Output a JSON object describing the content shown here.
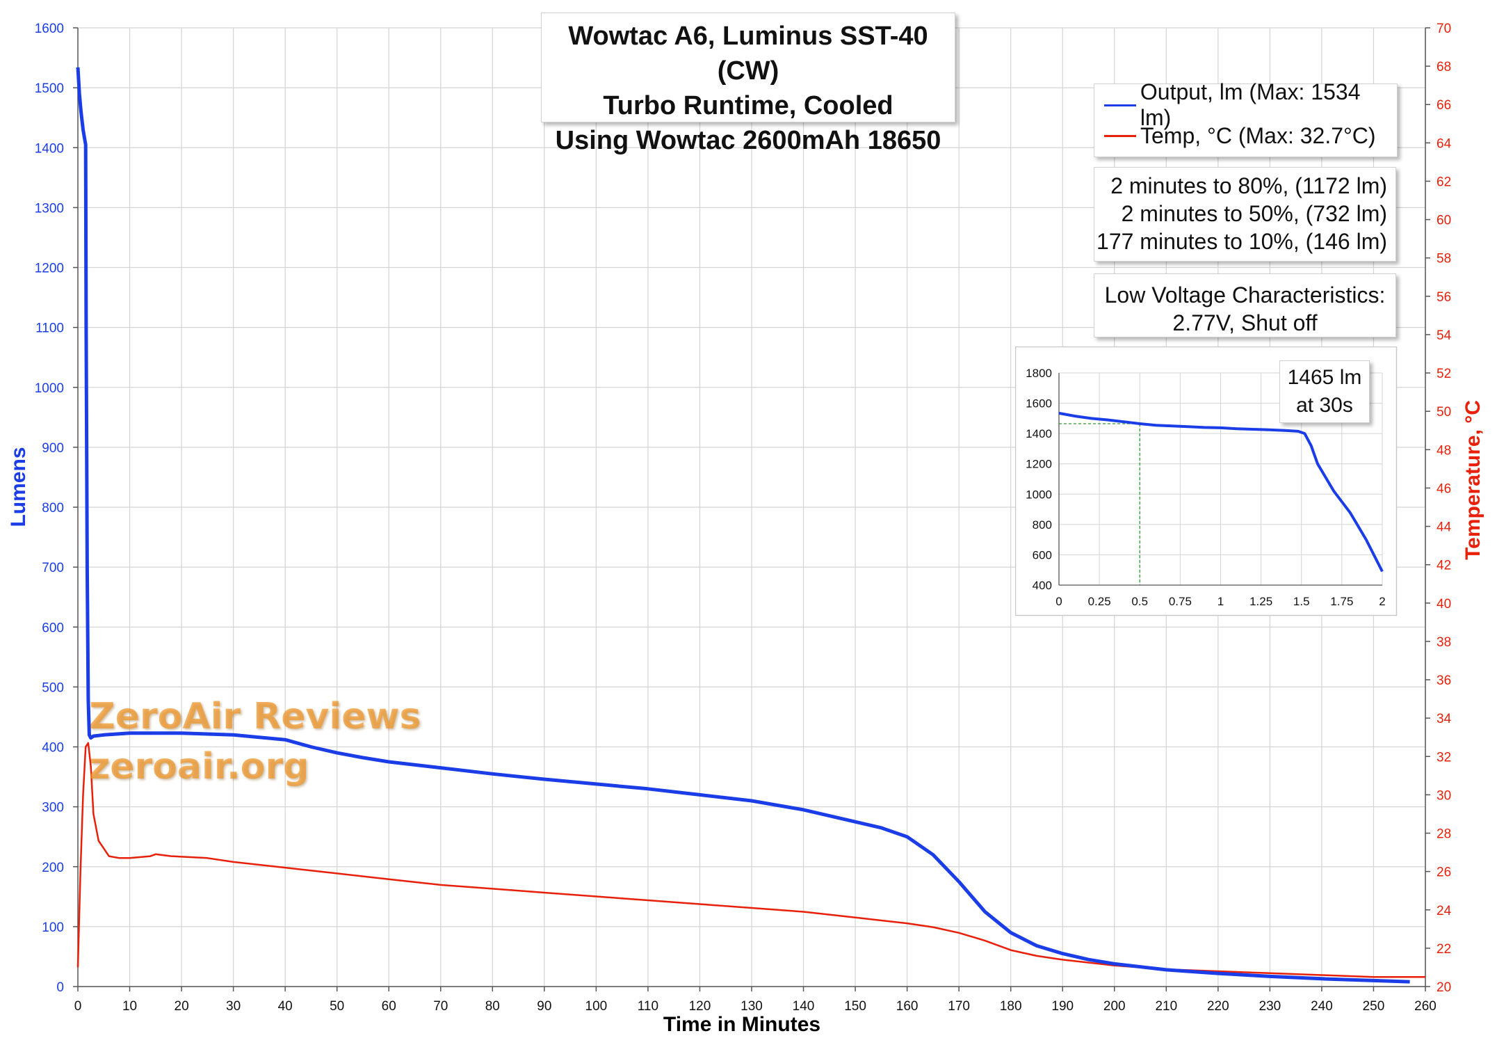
{
  "chart_data": [
    {
      "type": "line",
      "title": [
        "Wowtac A6, Luminus SST-40 (CW)",
        "Turbo Runtime, Cooled",
        "Using Wowtac 2600mAh 18650"
      ],
      "xlabel": "Time in Minutes",
      "ylabel": "Lumens",
      "y2label": "Temperature, °C",
      "xlim": [
        0,
        260
      ],
      "ylim": [
        0,
        1600
      ],
      "y2lim": [
        20,
        70
      ],
      "xticks": [
        0,
        10,
        20,
        30,
        40,
        50,
        60,
        70,
        80,
        90,
        100,
        110,
        120,
        130,
        140,
        150,
        160,
        170,
        180,
        190,
        200,
        210,
        220,
        230,
        240,
        250,
        260
      ],
      "yticks": [
        0,
        100,
        200,
        300,
        400,
        500,
        600,
        700,
        800,
        900,
        1000,
        1100,
        1200,
        1300,
        1400,
        1500,
        1600
      ],
      "y2ticks": [
        20,
        22,
        24,
        26,
        28,
        30,
        32,
        34,
        36,
        38,
        40,
        42,
        44,
        46,
        48,
        50,
        52,
        54,
        56,
        58,
        60,
        62,
        64,
        66,
        68,
        70
      ],
      "grid": true,
      "legend_position": "top-right",
      "series": [
        {
          "name": "Output, lm (Max: 1534 lm)",
          "color": "#1a3de8",
          "axis": "left",
          "x": [
            0,
            0.3,
            0.6,
            1,
            1.4,
            1.5,
            1.6,
            1.8,
            2,
            2.2,
            2.5,
            3,
            5,
            10,
            20,
            30,
            40,
            45,
            50,
            55,
            60,
            70,
            80,
            90,
            100,
            110,
            120,
            130,
            140,
            150,
            155,
            160,
            165,
            170,
            175,
            180,
            185,
            190,
            195,
            200,
            210,
            220,
            230,
            240,
            250,
            257
          ],
          "y": [
            1534,
            1490,
            1460,
            1430,
            1410,
            1405,
            1100,
            700,
            480,
            420,
            415,
            418,
            420,
            423,
            423,
            420,
            412,
            400,
            390,
            382,
            375,
            365,
            355,
            346,
            338,
            330,
            320,
            310,
            295,
            275,
            265,
            250,
            220,
            175,
            125,
            90,
            68,
            55,
            45,
            38,
            28,
            22,
            17,
            13,
            10,
            8
          ]
        },
        {
          "name": "Temp, °C (Max: 32.7°C)",
          "color": "#e8200a",
          "axis": "right",
          "x": [
            0,
            0.5,
            1,
            1.5,
            2,
            2.5,
            3,
            4,
            5,
            6,
            8,
            10,
            14,
            15,
            18,
            25,
            30,
            40,
            50,
            60,
            70,
            80,
            90,
            100,
            110,
            120,
            130,
            140,
            150,
            160,
            165,
            170,
            175,
            180,
            185,
            190,
            200,
            210,
            220,
            230,
            240,
            250,
            260
          ],
          "y": [
            21,
            26,
            30,
            32.5,
            32.7,
            31.5,
            29,
            27.6,
            27.2,
            26.8,
            26.7,
            26.7,
            26.8,
            26.9,
            26.8,
            26.7,
            26.5,
            26.2,
            25.9,
            25.6,
            25.3,
            25.1,
            24.9,
            24.7,
            24.5,
            24.3,
            24.1,
            23.9,
            23.6,
            23.3,
            23.1,
            22.8,
            22.4,
            21.9,
            21.6,
            21.4,
            21.1,
            20.9,
            20.8,
            20.7,
            20.6,
            20.5,
            20.5
          ]
        }
      ]
    },
    {
      "type": "line",
      "xlim": [
        0,
        2
      ],
      "ylim": [
        400,
        1800
      ],
      "xticks": [
        0,
        0.25,
        0.5,
        0.75,
        1,
        1.25,
        1.5,
        1.75,
        2
      ],
      "yticks": [
        400,
        600,
        800,
        1000,
        1200,
        1400,
        1600,
        1800
      ],
      "xtick_labels": [
        "0",
        "0.25",
        "0.5",
        "0.75",
        "1",
        "1.25",
        "1.5",
        "1.75",
        "2"
      ],
      "grid": true,
      "annotation_point": {
        "x": 0.5,
        "y": 1465
      },
      "series": [
        {
          "color": "#1a3de8",
          "x": [
            0,
            0.1,
            0.2,
            0.3,
            0.4,
            0.5,
            0.6,
            0.7,
            0.8,
            0.9,
            1.0,
            1.1,
            1.2,
            1.3,
            1.4,
            1.48,
            1.52,
            1.56,
            1.6,
            1.7,
            1.8,
            1.9,
            2.0
          ],
          "y": [
            1534,
            1515,
            1500,
            1490,
            1478,
            1465,
            1455,
            1450,
            1445,
            1440,
            1438,
            1432,
            1428,
            1425,
            1420,
            1415,
            1400,
            1320,
            1200,
            1020,
            880,
            700,
            490
          ]
        }
      ]
    }
  ],
  "legend": {
    "output_label": "Output, lm (Max: 1534 lm)",
    "temp_label": "Temp, °C (Max: 32.7°C)"
  },
  "stats": {
    "line1": "2 minutes to 80%, (1172 lm)",
    "line2": "2 minutes to 50%, (732 lm)",
    "line3": "177 minutes to 10%, (146 lm)"
  },
  "low_voltage": {
    "line1": "Low Voltage Characteristics:",
    "line2": "2.77V, Shut off"
  },
  "inset_note": {
    "line1": "1465 lm",
    "line2": "at 30s"
  },
  "watermark": {
    "line1": "ZeroAir Reviews",
    "line2": "zeroair.org"
  },
  "colors": {
    "left_axis": "#1a3de8",
    "right_axis": "#e8200a",
    "grid": "#d4d4d4",
    "guide": "#2e9a2e"
  }
}
